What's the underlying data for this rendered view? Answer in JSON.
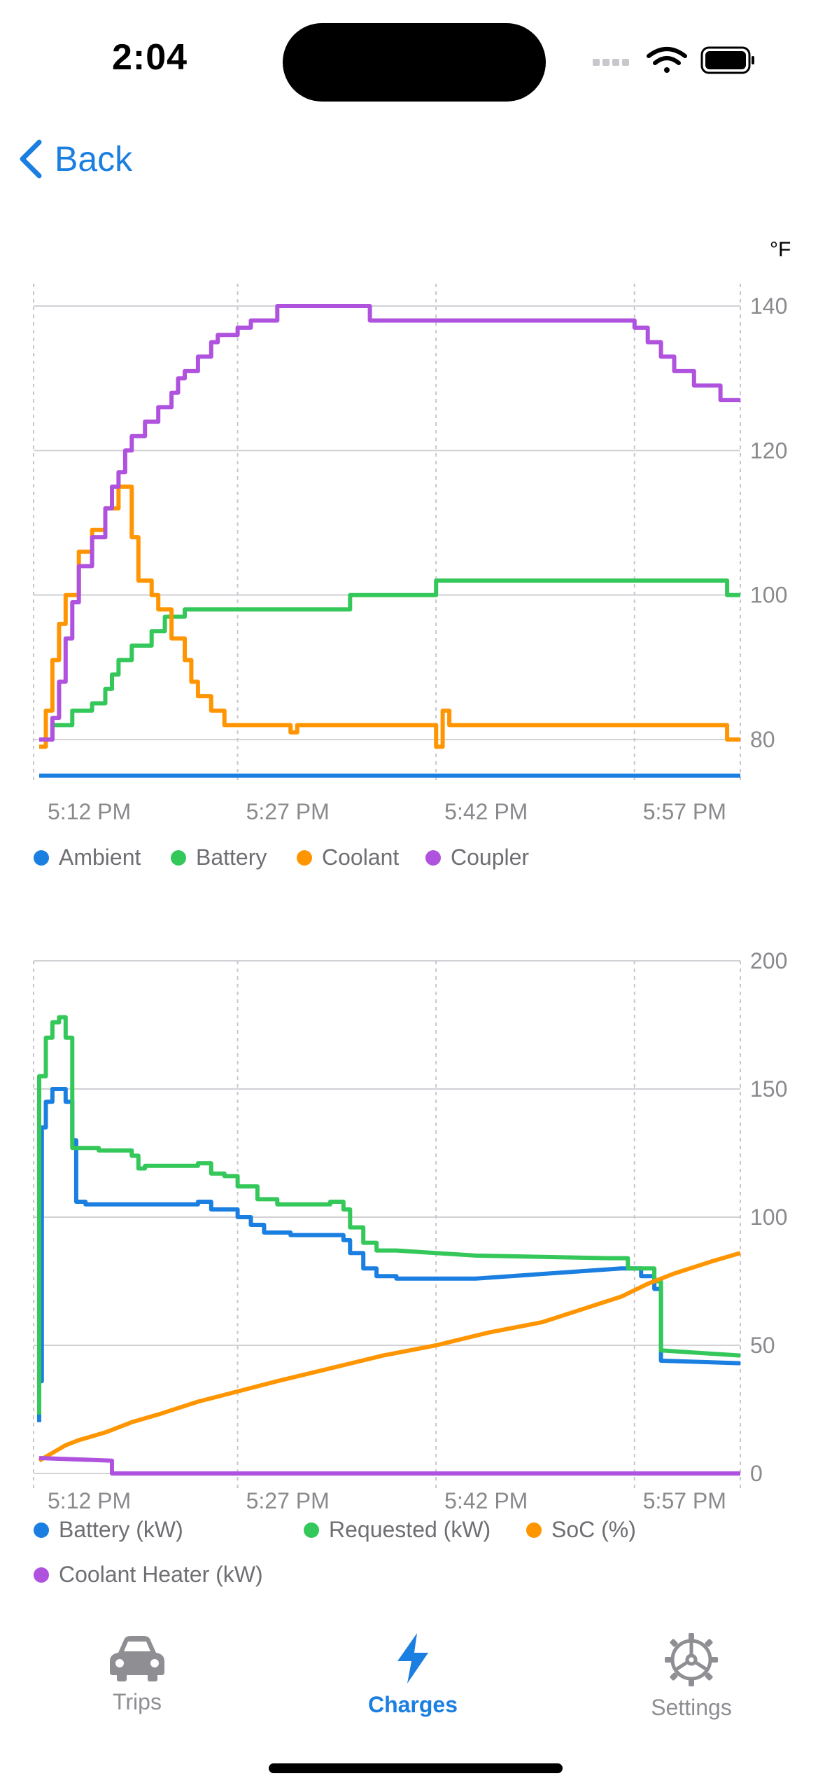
{
  "status": {
    "time": "2:04"
  },
  "nav": {
    "back_label": "Back"
  },
  "colors": {
    "accent": "#1a7fe0",
    "blue": "#1a7fe0",
    "green": "#34c759",
    "orange": "#ff9500",
    "purple": "#af52de"
  },
  "chart_data": [
    {
      "type": "line",
      "unit_label": "°F",
      "x_ticks": [
        "5:12 PM",
        "5:27 PM",
        "5:42 PM",
        "5:57 PM"
      ],
      "y_ticks": [
        80,
        100,
        120,
        140
      ],
      "ylim": [
        75,
        143
      ],
      "xlim_minutes": [
        0,
        53
      ],
      "legend": [
        "Ambient",
        "Battery",
        "Coolant",
        "Coupler"
      ],
      "legend_placement": "bottom",
      "series": [
        {
          "name": "Ambient",
          "color": "#1a7fe0",
          "points": [
            [
              0,
              75
            ],
            [
              53,
              75
            ]
          ]
        },
        {
          "name": "Battery",
          "color": "#34c759",
          "points": [
            [
              0,
              80
            ],
            [
              1,
              80
            ],
            [
              1,
              82
            ],
            [
              2.5,
              82
            ],
            [
              2.5,
              84
            ],
            [
              4,
              84
            ],
            [
              4,
              85
            ],
            [
              5,
              85
            ],
            [
              5,
              87
            ],
            [
              5.5,
              87
            ],
            [
              5.5,
              89
            ],
            [
              6,
              89
            ],
            [
              6,
              91
            ],
            [
              7,
              91
            ],
            [
              7,
              93
            ],
            [
              8.5,
              93
            ],
            [
              8.5,
              95
            ],
            [
              9.5,
              95
            ],
            [
              9.5,
              97
            ],
            [
              11,
              97
            ],
            [
              11,
              98
            ],
            [
              23.5,
              98
            ],
            [
              23.5,
              100
            ],
            [
              30,
              100
            ],
            [
              30,
              102
            ],
            [
              52,
              102
            ],
            [
              52,
              100
            ],
            [
              53,
              100
            ]
          ]
        },
        {
          "name": "Coolant",
          "color": "#ff9500",
          "points": [
            [
              0,
              79
            ],
            [
              0.5,
              79
            ],
            [
              0.5,
              84
            ],
            [
              1,
              84
            ],
            [
              1,
              91
            ],
            [
              1.5,
              91
            ],
            [
              1.5,
              96
            ],
            [
              2,
              96
            ],
            [
              2,
              100
            ],
            [
              3,
              100
            ],
            [
              3,
              106
            ],
            [
              4,
              106
            ],
            [
              4,
              109
            ],
            [
              5,
              109
            ],
            [
              5,
              112
            ],
            [
              6,
              112
            ],
            [
              6,
              115
            ],
            [
              7,
              115
            ],
            [
              7,
              108
            ],
            [
              7.5,
              108
            ],
            [
              7.5,
              102
            ],
            [
              8.5,
              102
            ],
            [
              8.5,
              100
            ],
            [
              9,
              100
            ],
            [
              9,
              98
            ],
            [
              10,
              98
            ],
            [
              10,
              94
            ],
            [
              11,
              94
            ],
            [
              11,
              91
            ],
            [
              11.5,
              91
            ],
            [
              11.5,
              88
            ],
            [
              12,
              88
            ],
            [
              12,
              86
            ],
            [
              13,
              86
            ],
            [
              13,
              84
            ],
            [
              14,
              84
            ],
            [
              14,
              82
            ],
            [
              19,
              82
            ],
            [
              19,
              81
            ],
            [
              19.5,
              81
            ],
            [
              19.5,
              82
            ],
            [
              30,
              82
            ],
            [
              30,
              79
            ],
            [
              30.5,
              79
            ],
            [
              30.5,
              84
            ],
            [
              31,
              84
            ],
            [
              31,
              82
            ],
            [
              52,
              82
            ],
            [
              52,
              80
            ],
            [
              53,
              80
            ]
          ]
        },
        {
          "name": "Coupler",
          "color": "#af52de",
          "points": [
            [
              0,
              80
            ],
            [
              1,
              80
            ],
            [
              1,
              83
            ],
            [
              1.5,
              83
            ],
            [
              1.5,
              88
            ],
            [
              2,
              88
            ],
            [
              2,
              94
            ],
            [
              2.5,
              94
            ],
            [
              2.5,
              99
            ],
            [
              3,
              99
            ],
            [
              3,
              104
            ],
            [
              4,
              104
            ],
            [
              4,
              108
            ],
            [
              5,
              108
            ],
            [
              5,
              112
            ],
            [
              5.5,
              112
            ],
            [
              5.5,
              115
            ],
            [
              6,
              115
            ],
            [
              6,
              117
            ],
            [
              6.5,
              117
            ],
            [
              6.5,
              120
            ],
            [
              7,
              120
            ],
            [
              7,
              122
            ],
            [
              8,
              122
            ],
            [
              8,
              124
            ],
            [
              9,
              124
            ],
            [
              9,
              126
            ],
            [
              10,
              126
            ],
            [
              10,
              128
            ],
            [
              10.5,
              128
            ],
            [
              10.5,
              130
            ],
            [
              11,
              130
            ],
            [
              11,
              131
            ],
            [
              12,
              131
            ],
            [
              12,
              133
            ],
            [
              13,
              133
            ],
            [
              13,
              135
            ],
            [
              13.5,
              135
            ],
            [
              13.5,
              136
            ],
            [
              15,
              136
            ],
            [
              15,
              137
            ],
            [
              16,
              137
            ],
            [
              16,
              138
            ],
            [
              18,
              138
            ],
            [
              18,
              140
            ],
            [
              25,
              140
            ],
            [
              25,
              138
            ],
            [
              45,
              138
            ],
            [
              45,
              137
            ],
            [
              46,
              137
            ],
            [
              46,
              135
            ],
            [
              47,
              135
            ],
            [
              47,
              133
            ],
            [
              48,
              133
            ],
            [
              48,
              131
            ],
            [
              49.5,
              131
            ],
            [
              49.5,
              129
            ],
            [
              51.5,
              129
            ],
            [
              51.5,
              127
            ],
            [
              53,
              127
            ]
          ]
        }
      ]
    },
    {
      "type": "line",
      "x_ticks": [
        "5:12 PM",
        "5:27 PM",
        "5:42 PM",
        "5:57 PM"
      ],
      "y_ticks": [
        0,
        50,
        100,
        150,
        200
      ],
      "ylim": [
        0,
        200
      ],
      "xlim_minutes": [
        0,
        53
      ],
      "legend": [
        "Battery (kW)",
        "Requested (kW)",
        "SoC (%)",
        "Coolant Heater (kW)"
      ],
      "legend_placement": "bottom",
      "series": [
        {
          "name": "Battery (kW)",
          "color": "#1a7fe0",
          "points": [
            [
              0,
              20
            ],
            [
              0,
              36
            ],
            [
              0.2,
              36
            ],
            [
              0.2,
              135
            ],
            [
              0.5,
              135
            ],
            [
              0.5,
              145
            ],
            [
              1,
              145
            ],
            [
              1,
              150
            ],
            [
              2,
              150
            ],
            [
              2,
              145
            ],
            [
              2.5,
              145
            ],
            [
              2.5,
              130
            ],
            [
              2.8,
              130
            ],
            [
              2.8,
              106
            ],
            [
              3.5,
              106
            ],
            [
              3.5,
              105
            ],
            [
              12,
              105
            ],
            [
              12,
              106
            ],
            [
              13,
              106
            ],
            [
              13,
              103
            ],
            [
              15,
              103
            ],
            [
              15,
              100
            ],
            [
              16,
              100
            ],
            [
              16,
              97
            ],
            [
              17,
              97
            ],
            [
              17,
              94
            ],
            [
              19,
              94
            ],
            [
              19,
              93
            ],
            [
              23,
              93
            ],
            [
              23,
              91
            ],
            [
              23.5,
              91
            ],
            [
              23.5,
              86
            ],
            [
              24.5,
              86
            ],
            [
              24.5,
              80
            ],
            [
              25.5,
              80
            ],
            [
              25.5,
              77
            ],
            [
              27,
              77
            ],
            [
              27,
              76
            ],
            [
              33,
              76
            ],
            [
              44,
              80
            ],
            [
              45.5,
              80
            ],
            [
              45.5,
              77
            ],
            [
              46.5,
              77
            ],
            [
              46.5,
              72
            ],
            [
              47,
              72
            ],
            [
              47,
              44
            ],
            [
              53,
              43
            ]
          ]
        },
        {
          "name": "Requested (kW)",
          "color": "#34c759",
          "points": [
            [
              0,
              23
            ],
            [
              0,
              155
            ],
            [
              0.5,
              155
            ],
            [
              0.5,
              170
            ],
            [
              1,
              170
            ],
            [
              1,
              176
            ],
            [
              1.5,
              176
            ],
            [
              1.5,
              178
            ],
            [
              2,
              178
            ],
            [
              2,
              170
            ],
            [
              2.5,
              170
            ],
            [
              2.5,
              127
            ],
            [
              4.5,
              127
            ],
            [
              4.5,
              126
            ],
            [
              7,
              126
            ],
            [
              7,
              124
            ],
            [
              7.5,
              124
            ],
            [
              7.5,
              119
            ],
            [
              8,
              119
            ],
            [
              8,
              120
            ],
            [
              12,
              120
            ],
            [
              12,
              121
            ],
            [
              13,
              121
            ],
            [
              13,
              117
            ],
            [
              14,
              117
            ],
            [
              14,
              116
            ],
            [
              15,
              116
            ],
            [
              15,
              112
            ],
            [
              16.5,
              112
            ],
            [
              16.5,
              107
            ],
            [
              18,
              107
            ],
            [
              18,
              105
            ],
            [
              22,
              105
            ],
            [
              22,
              106
            ],
            [
              23,
              106
            ],
            [
              23,
              103
            ],
            [
              23.5,
              103
            ],
            [
              23.5,
              96
            ],
            [
              24.5,
              96
            ],
            [
              24.5,
              90
            ],
            [
              25.5,
              90
            ],
            [
              25.5,
              87
            ],
            [
              27,
              87
            ],
            [
              33,
              85
            ],
            [
              43,
              84
            ],
            [
              44.5,
              84
            ],
            [
              44.5,
              80
            ],
            [
              46.5,
              80
            ],
            [
              46.5,
              75
            ],
            [
              47,
              75
            ],
            [
              47,
              48
            ],
            [
              53,
              46
            ]
          ]
        },
        {
          "name": "SoC (%)",
          "color": "#ff9500",
          "points": [
            [
              0,
              5
            ],
            [
              1,
              8
            ],
            [
              2,
              11
            ],
            [
              3,
              13
            ],
            [
              5,
              16
            ],
            [
              7,
              20
            ],
            [
              9,
              23
            ],
            [
              12,
              28
            ],
            [
              15,
              32
            ],
            [
              18,
              36
            ],
            [
              22,
              41
            ],
            [
              26,
              46
            ],
            [
              30,
              50
            ],
            [
              34,
              55
            ],
            [
              38,
              59
            ],
            [
              41,
              64
            ],
            [
              44,
              69
            ],
            [
              46,
              74
            ],
            [
              48,
              78
            ],
            [
              51,
              83
            ],
            [
              53,
              86
            ]
          ]
        },
        {
          "name": "Coolant Heater (kW)",
          "color": "#af52de",
          "points": [
            [
              0,
              6
            ],
            [
              5.5,
              5
            ],
            [
              5.5,
              0
            ],
            [
              53,
              0
            ]
          ]
        }
      ]
    }
  ],
  "tabs": [
    {
      "label": "Trips",
      "icon": "car-icon",
      "active": false
    },
    {
      "label": "Charges",
      "icon": "bolt-icon",
      "active": true
    },
    {
      "label": "Settings",
      "icon": "gear-icon",
      "active": false
    }
  ]
}
